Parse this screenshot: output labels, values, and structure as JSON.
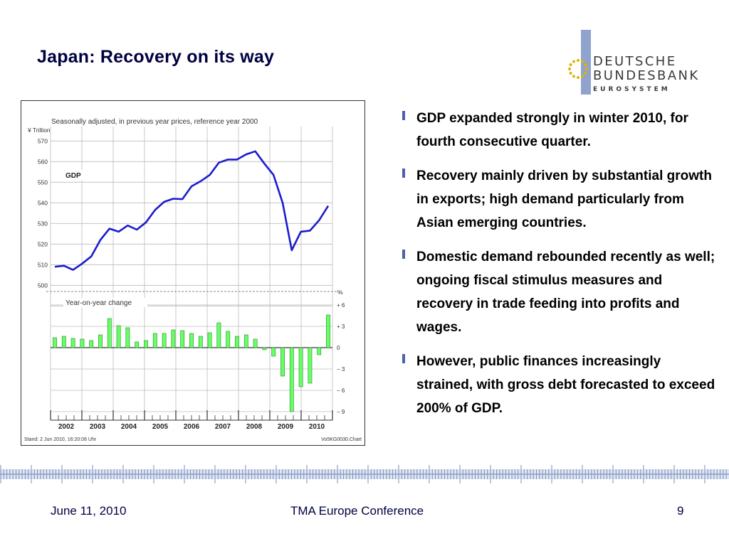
{
  "slide": {
    "title": "Japan: Recovery on its way",
    "logo": {
      "line1": "DEUTSCHE",
      "line2": "BUNDESBANK",
      "line3": "EUROSYSTEM"
    }
  },
  "chart": {
    "subtitle": "Seasonally adjusted, in previous year prices, reference year 2000",
    "top_unit": "¥ Trillion",
    "series_label": "GDP",
    "bottom_label": "Year-on-year change",
    "bottom_unit": "%",
    "footnote_left": "Stand: 2 Jun 2010, 16:20:06 Uhr",
    "footnote_right": "Vo5KG0030.Chart"
  },
  "chart_data": {
    "type": "line+bar",
    "x_labels": [
      "2002",
      "2003",
      "2004",
      "2005",
      "2006",
      "2007",
      "2008",
      "2009",
      "2010"
    ],
    "line": {
      "name": "GDP",
      "unit": "¥ Trillion",
      "ylim": [
        497,
        577
      ],
      "y_ticks": [
        "500",
        "510",
        "520",
        "530",
        "540",
        "550",
        "560",
        "570"
      ],
      "values": [
        509,
        509.5,
        507.5,
        510.5,
        514,
        522,
        527.5,
        526,
        529,
        527,
        530.5,
        536.5,
        540.5,
        542,
        541.8,
        548,
        550.5,
        553.5,
        559.5,
        561,
        561,
        563.5,
        565,
        559,
        553.5,
        540,
        517,
        526,
        526.5,
        531.5,
        538.5
      ],
      "color": "#1c1ccc"
    },
    "bars": {
      "name": "Year-on-year change",
      "unit": "%",
      "ylim": [
        -10,
        7.5
      ],
      "y_ticks": [
        "+ 6",
        "+ 3",
        "0",
        "− 3",
        "− 6",
        "− 9"
      ],
      "values": [
        1.4,
        1.6,
        1.3,
        1.2,
        1.0,
        1.8,
        4.1,
        3.1,
        2.8,
        0.8,
        1.0,
        2.0,
        2.0,
        2.5,
        2.4,
        2.0,
        1.6,
        2.1,
        3.5,
        2.3,
        1.6,
        1.8,
        1.2,
        -0.3,
        -1.2,
        -4.0,
        -9.0,
        -5.5,
        -5.0,
        -1.0,
        4.6
      ],
      "color": "#66ff66"
    }
  },
  "bullets": [
    "GDP expanded strongly in winter 2010, for fourth consecutive quarter.",
    "Recovery mainly driven by substantial growth in exports; high demand particularly from Asian emerging countries.",
    "Domestic demand rebounded recently as well; ongoing fiscal stimulus measures and recovery in trade feeding into profits and wages.",
    "However, public finances increasingly strained, with gross debt forecasted to exceed 200% of GDP."
  ],
  "footer": {
    "date": "June 11, 2010",
    "conference": "TMA Europe Conference",
    "page": "9"
  },
  "colors": {
    "title": "#000040",
    "logo_bar": "#8fa3cc",
    "stars": "#e0b400",
    "bullet_marker": "#4a63a8",
    "ruler": "#8fa3cc"
  }
}
